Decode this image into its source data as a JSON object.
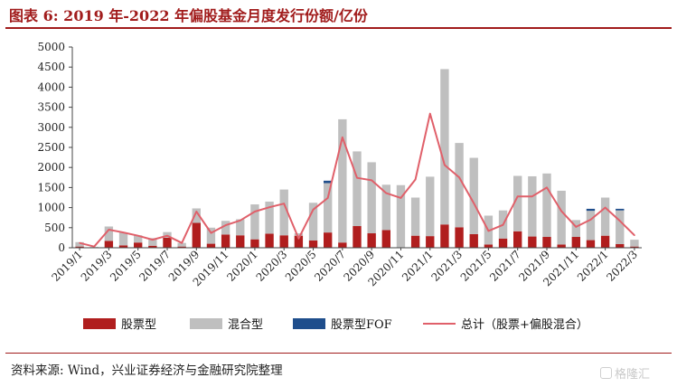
{
  "figure": {
    "title": "图表 6:  2019 年-2022 年偏股基金月度发行份额/亿份",
    "source": "资料来源:  Wind，兴业证券经济与金融研究院整理",
    "watermark": "格隆汇"
  },
  "colors": {
    "stock": "#b01e1e",
    "mixed": "#bfbfbf",
    "fof": "#1f4e8c",
    "total": "#e0606a",
    "title": "#a11c1c"
  },
  "chart_data": {
    "type": "bar",
    "stacked": true,
    "ylim": [
      0,
      5000
    ],
    "yticks": [
      0,
      500,
      1000,
      1500,
      2000,
      2500,
      3000,
      3500,
      4000,
      4500,
      5000
    ],
    "categories": [
      "2019/1",
      "2019/2",
      "2019/3",
      "2019/4",
      "2019/5",
      "2019/6",
      "2019/7",
      "2019/8",
      "2019/9",
      "2019/10",
      "2019/11",
      "2019/12",
      "2020/1",
      "2020/2",
      "2020/3",
      "2020/4",
      "2020/5",
      "2020/6",
      "2020/7",
      "2020/8",
      "2020/9",
      "2020/10",
      "2020/11",
      "2020/12",
      "2021/1",
      "2021/2",
      "2021/3",
      "2021/4",
      "2021/5",
      "2021/6",
      "2021/7",
      "2021/8",
      "2021/9",
      "2021/10",
      "2021/11",
      "2021/12",
      "2022/1",
      "2022/2",
      "2022/3"
    ],
    "xtick_labels": [
      "2019/1",
      "2019/3",
      "2019/5",
      "2019/7",
      "2019/9",
      "2019/11",
      "2020/1",
      "2020/3",
      "2020/5",
      "2020/7",
      "2020/9",
      "2020/11",
      "2021/1",
      "2021/3",
      "2021/5",
      "2021/7",
      "2021/9",
      "2021/11",
      "2022/1",
      "2022/3"
    ],
    "series": [
      {
        "name": "股票型",
        "kind": "bar",
        "values": [
          30,
          10,
          170,
          60,
          130,
          50,
          250,
          30,
          620,
          100,
          330,
          310,
          210,
          350,
          310,
          300,
          180,
          380,
          130,
          540,
          360,
          440,
          0,
          300,
          290,
          580,
          510,
          340,
          80,
          230,
          410,
          280,
          270,
          80,
          270,
          190,
          300,
          90,
          30
        ]
      },
      {
        "name": "混合型",
        "kind": "bar",
        "values": [
          110,
          10,
          360,
          320,
          180,
          190,
          140,
          90,
          360,
          400,
          340,
          400,
          870,
          800,
          1140,
          60,
          940,
          1230,
          3070,
          1860,
          1770,
          1130,
          1560,
          950,
          1480,
          3870,
          2100,
          1900,
          720,
          700,
          1380,
          1500,
          1580,
          1340,
          420,
          730,
          950,
          840,
          170
        ]
      },
      {
        "name": "股票型FOF",
        "kind": "bar",
        "values": [
          0,
          0,
          0,
          0,
          0,
          0,
          0,
          0,
          0,
          0,
          0,
          0,
          0,
          0,
          0,
          0,
          0,
          60,
          0,
          0,
          0,
          0,
          0,
          0,
          0,
          0,
          0,
          0,
          0,
          0,
          0,
          0,
          0,
          0,
          0,
          50,
          0,
          40,
          0
        ]
      },
      {
        "name": "总计（股票+偏股混合）",
        "kind": "line",
        "values": [
          120,
          30,
          450,
          380,
          300,
          200,
          300,
          120,
          900,
          370,
          560,
          680,
          900,
          1010,
          1100,
          230,
          950,
          1240,
          2750,
          1740,
          1680,
          1360,
          1240,
          1700,
          3340,
          2060,
          1750,
          1110,
          420,
          570,
          1280,
          1280,
          1500,
          910,
          520,
          700,
          1000,
          670,
          310
        ]
      }
    ]
  }
}
